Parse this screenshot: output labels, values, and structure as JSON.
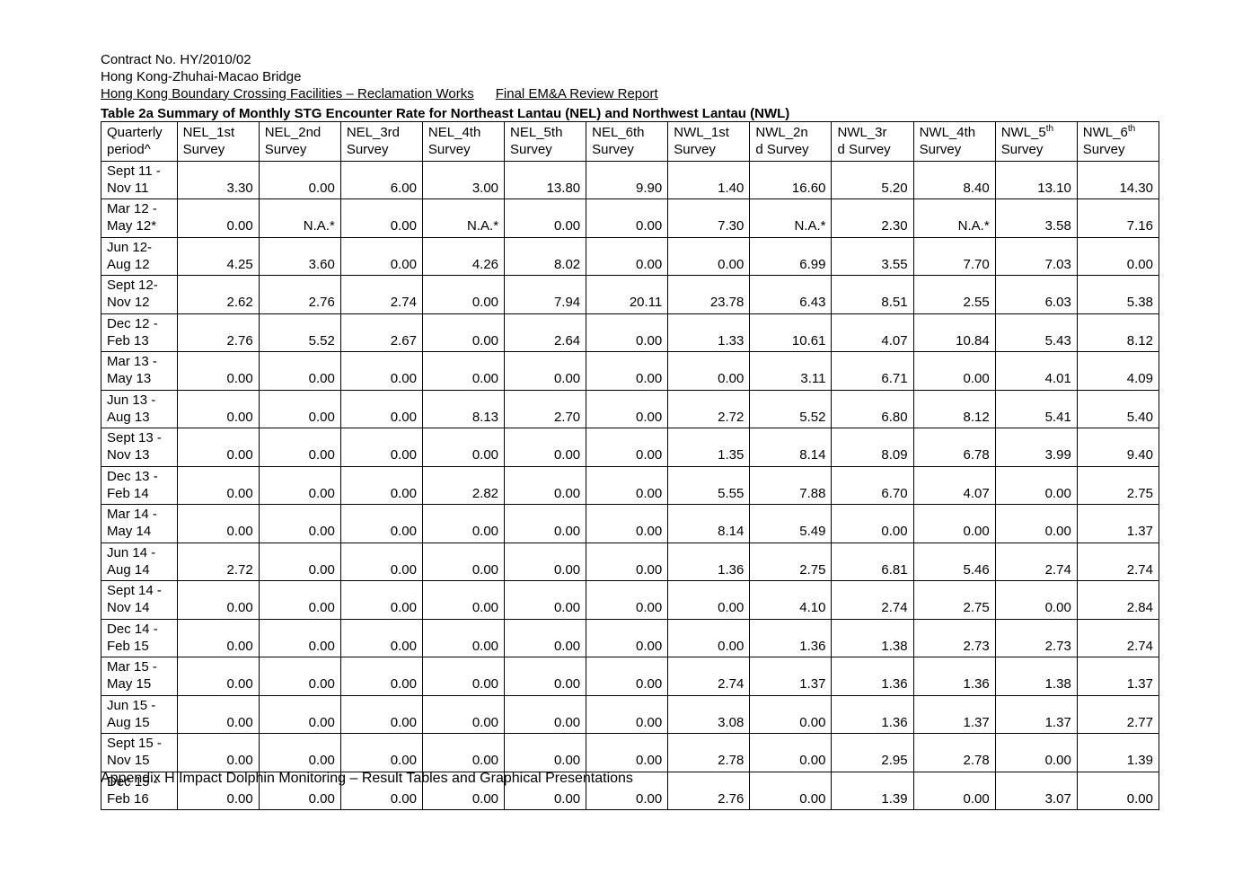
{
  "header": {
    "line1": "Contract No. HY/2010/02",
    "line2": "Hong Kong-Zhuhai-Macao Bridge",
    "line3a": "Hong Kong Boundary Crossing Facilities – Reclamation Works",
    "line3b": "Final EM&A Review Report"
  },
  "table": {
    "title": "Table 2a Summary of Monthly STG Encounter Rate for Northeast Lantau (NEL) and Northwest Lantau (NWL)",
    "columns": [
      {
        "l1": "Quarterly",
        "l2": "period^"
      },
      {
        "l1": "NEL_1st",
        "l2": "Survey"
      },
      {
        "l1": "NEL_2nd",
        "l2": "Survey"
      },
      {
        "l1": "NEL_3rd",
        "l2": "Survey"
      },
      {
        "l1": "NEL_4th",
        "l2": "Survey"
      },
      {
        "l1": "NEL_5th",
        "l2": "Survey"
      },
      {
        "l1": "NEL_6th",
        "l2": "Survey"
      },
      {
        "l1": "NWL_1st",
        "l2": "Survey"
      },
      {
        "l1": "NWL_2n",
        "l2": "d Survey"
      },
      {
        "l1": "NWL_3r",
        "l2": "d Survey"
      },
      {
        "l1": "NWL_4th",
        "l2": "Survey"
      },
      {
        "l1": "NWL_5",
        "sup": "th",
        "l2": "Survey"
      },
      {
        "l1": "NWL_6",
        "sup": "th",
        "l2": "Survey"
      }
    ],
    "rows": [
      {
        "p1": "Sept 11 -",
        "p2": "Nov 11",
        "v": [
          "3.30",
          "0.00",
          "6.00",
          "3.00",
          "13.80",
          "9.90",
          "1.40",
          "16.60",
          "5.20",
          "8.40",
          "13.10",
          "14.30"
        ]
      },
      {
        "p1": "Mar 12 -",
        "p2": "May 12*",
        "v": [
          "0.00",
          "N.A.*",
          "0.00",
          "N.A.*",
          "0.00",
          "0.00",
          "7.30",
          "N.A.*",
          "2.30",
          "N.A.*",
          "3.58",
          "7.16"
        ]
      },
      {
        "p1": "Jun 12-",
        "p2": "Aug 12",
        "v": [
          "4.25",
          "3.60",
          "0.00",
          "4.26",
          "8.02",
          "0.00",
          "0.00",
          "6.99",
          "3.55",
          "7.70",
          "7.03",
          "0.00"
        ]
      },
      {
        "p1": "Sept 12-",
        "p2": "Nov 12",
        "v": [
          "2.62",
          "2.76",
          "2.74",
          "0.00",
          "7.94",
          "20.11",
          "23.78",
          "6.43",
          "8.51",
          "2.55",
          "6.03",
          "5.38"
        ]
      },
      {
        "p1": "Dec 12 -",
        "p2": "Feb 13",
        "v": [
          "2.76",
          "5.52",
          "2.67",
          "0.00",
          "2.64",
          "0.00",
          "1.33",
          "10.61",
          "4.07",
          "10.84",
          "5.43",
          "8.12"
        ]
      },
      {
        "p1": "Mar 13 -",
        "p2": "May 13",
        "v": [
          "0.00",
          "0.00",
          "0.00",
          "0.00",
          "0.00",
          "0.00",
          "0.00",
          "3.11",
          "6.71",
          "0.00",
          "4.01",
          "4.09"
        ]
      },
      {
        "p1": "Jun 13 -",
        "p2": "Aug 13",
        "v": [
          "0.00",
          "0.00",
          "0.00",
          "8.13",
          "2.70",
          "0.00",
          "2.72",
          "5.52",
          "6.80",
          "8.12",
          "5.41",
          "5.40"
        ]
      },
      {
        "p1": "Sept 13 -",
        "p2": "Nov 13",
        "v": [
          "0.00",
          "0.00",
          "0.00",
          "0.00",
          "0.00",
          "0.00",
          "1.35",
          "8.14",
          "8.09",
          "6.78",
          "3.99",
          "9.40"
        ]
      },
      {
        "p1": "Dec 13 -",
        "p2": "Feb 14",
        "v": [
          "0.00",
          "0.00",
          "0.00",
          "2.82",
          "0.00",
          "0.00",
          "5.55",
          "7.88",
          "6.70",
          "4.07",
          "0.00",
          "2.75"
        ]
      },
      {
        "p1": "Mar 14 -",
        "p2": "May 14",
        "v": [
          "0.00",
          "0.00",
          "0.00",
          "0.00",
          "0.00",
          "0.00",
          "8.14",
          "5.49",
          "0.00",
          "0.00",
          "0.00",
          "1.37"
        ]
      },
      {
        "p1": "Jun 14 -",
        "p2": "Aug 14",
        "v": [
          "2.72",
          "0.00",
          "0.00",
          "0.00",
          "0.00",
          "0.00",
          "1.36",
          "2.75",
          "6.81",
          "5.46",
          "2.74",
          "2.74"
        ]
      },
      {
        "p1": "Sept 14 -",
        "p2": "Nov 14",
        "v": [
          "0.00",
          "0.00",
          "0.00",
          "0.00",
          "0.00",
          "0.00",
          "0.00",
          "4.10",
          "2.74",
          "2.75",
          "0.00",
          "2.84"
        ]
      },
      {
        "p1": "Dec 14 -",
        "p2": "Feb 15",
        "v": [
          "0.00",
          "0.00",
          "0.00",
          "0.00",
          "0.00",
          "0.00",
          "0.00",
          "1.36",
          "1.38",
          "2.73",
          "2.73",
          "2.74"
        ]
      },
      {
        "p1": "Mar 15 -",
        "p2": "May 15",
        "v": [
          "0.00",
          "0.00",
          "0.00",
          "0.00",
          "0.00",
          "0.00",
          "2.74",
          "1.37",
          "1.36",
          "1.36",
          "1.38",
          "1.37"
        ]
      },
      {
        "p1": "Jun 15 -",
        "p2": "Aug 15",
        "v": [
          "0.00",
          "0.00",
          "0.00",
          "0.00",
          "0.00",
          "0.00",
          "3.08",
          "0.00",
          "1.36",
          "1.37",
          "1.37",
          "2.77"
        ]
      },
      {
        "p1": "Sept 15 -",
        "p2": "Nov 15",
        "v": [
          "0.00",
          "0.00",
          "0.00",
          "0.00",
          "0.00",
          "0.00",
          "2.78",
          "0.00",
          "2.95",
          "2.78",
          "0.00",
          "1.39"
        ]
      },
      {
        "p1": "Dec 15 -",
        "p2": "Feb 16",
        "v": [
          "0.00",
          "0.00",
          "0.00",
          "0.00",
          "0.00",
          "0.00",
          "2.76",
          "0.00",
          "1.39",
          "0.00",
          "3.07",
          "0.00"
        ]
      }
    ]
  },
  "footer": "Appendix H Impact Dolphin Monitoring – Result Tables and Graphical Presentations"
}
